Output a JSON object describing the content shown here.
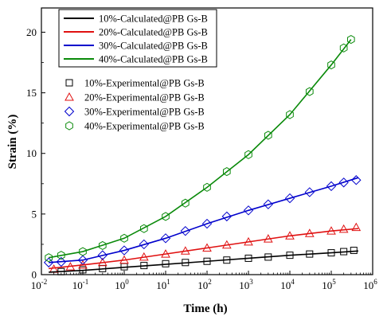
{
  "chart_data": {
    "type": "line",
    "title": "",
    "xlabel": "Time (h)",
    "ylabel": "Strain (%)",
    "x_scale": "log",
    "xlim": [
      0.01,
      1000000
    ],
    "ylim": [
      0,
      22
    ],
    "x_ticks": [
      {
        "base": "10",
        "exp": "-2",
        "value": 0.01
      },
      {
        "base": "10",
        "exp": "-1",
        "value": 0.1
      },
      {
        "base": "10",
        "exp": "0",
        "value": 1
      },
      {
        "base": "10",
        "exp": "1",
        "value": 10
      },
      {
        "base": "10",
        "exp": "2",
        "value": 100
      },
      {
        "base": "10",
        "exp": "3",
        "value": 1000
      },
      {
        "base": "10",
        "exp": "4",
        "value": 10000
      },
      {
        "base": "10",
        "exp": "5",
        "value": 100000
      },
      {
        "base": "10",
        "exp": "6",
        "value": 1000000
      }
    ],
    "y_ticks": [
      "0",
      "5",
      "10",
      "15",
      "20"
    ],
    "grid": false,
    "legend_placement": "top-left",
    "series": [
      {
        "name": "10%-Calculated@PB Gs-B",
        "kind": "line",
        "color": "#000000",
        "x": [
          0.015,
          0.1,
          1,
          10,
          100,
          1000,
          10000,
          100000,
          450000
        ],
        "y": [
          0.2,
          0.35,
          0.6,
          0.85,
          1.1,
          1.35,
          1.6,
          1.8,
          1.95
        ]
      },
      {
        "name": "20%-Calculated@PB Gs-B",
        "kind": "line",
        "color": "#e01010",
        "x": [
          0.015,
          0.1,
          1,
          10,
          100,
          1000,
          10000,
          100000,
          450000
        ],
        "y": [
          0.5,
          0.8,
          1.2,
          1.7,
          2.2,
          2.7,
          3.2,
          3.6,
          3.8
        ]
      },
      {
        "name": "30%-Calculated@PB Gs-B",
        "kind": "line",
        "color": "#0000cc",
        "x": [
          0.015,
          0.1,
          1,
          10,
          100,
          1000,
          10000,
          100000,
          450000
        ],
        "y": [
          1.0,
          1.2,
          2.0,
          3.0,
          4.2,
          5.3,
          6.3,
          7.3,
          8.0
        ]
      },
      {
        "name": "40%-Calculated@PB Gs-B",
        "kind": "line",
        "color": "#0a8a0a",
        "x": [
          0.015,
          0.1,
          1,
          10,
          100,
          1000,
          10000,
          100000,
          300000
        ],
        "y": [
          1.4,
          1.9,
          3.0,
          4.8,
          7.2,
          9.9,
          13.2,
          17.3,
          19.4
        ]
      },
      {
        "name": "10%-Experimental@PB Gs-B",
        "kind": "marker",
        "marker": "square",
        "color": "#000000",
        "x": [
          0.03,
          0.1,
          0.3,
          1,
          3,
          10,
          30,
          100,
          300,
          1000,
          3000,
          10000,
          30000,
          100000,
          200000,
          350000
        ],
        "y": [
          0.25,
          0.4,
          0.5,
          0.65,
          0.75,
          0.9,
          1.0,
          1.1,
          1.2,
          1.35,
          1.45,
          1.6,
          1.7,
          1.8,
          1.9,
          2.0
        ]
      },
      {
        "name": "20%-Experimental@PB Gs-B",
        "kind": "marker",
        "marker": "triangle",
        "color": "#e01010",
        "x": [
          0.02,
          0.05,
          0.1,
          0.3,
          1,
          3,
          10,
          30,
          100,
          300,
          1000,
          3000,
          10000,
          30000,
          100000,
          200000,
          400000
        ],
        "y": [
          0.45,
          0.65,
          0.8,
          1.0,
          1.2,
          1.45,
          1.7,
          1.95,
          2.2,
          2.45,
          2.7,
          2.95,
          3.2,
          3.4,
          3.6,
          3.75,
          3.9
        ]
      },
      {
        "name": "30%-Experimental@PB Gs-B",
        "kind": "marker",
        "marker": "diamond",
        "color": "#0000cc",
        "x": [
          0.015,
          0.03,
          0.1,
          0.3,
          1,
          3,
          10,
          30,
          100,
          300,
          1000,
          3000,
          10000,
          30000,
          100000,
          200000,
          400000
        ],
        "y": [
          1.0,
          1.05,
          1.2,
          1.6,
          2.0,
          2.5,
          3.0,
          3.6,
          4.2,
          4.8,
          5.3,
          5.8,
          6.3,
          6.8,
          7.3,
          7.6,
          7.8
        ]
      },
      {
        "name": "40%-Experimental@PB Gs-B",
        "kind": "marker",
        "marker": "hexagon",
        "color": "#0a8a0a",
        "x": [
          0.015,
          0.03,
          0.1,
          0.3,
          1,
          3,
          10,
          30,
          100,
          300,
          1000,
          3000,
          10000,
          30000,
          100000,
          200000,
          300000
        ],
        "y": [
          1.4,
          1.6,
          1.9,
          2.4,
          3.0,
          3.8,
          4.8,
          5.9,
          7.2,
          8.5,
          9.9,
          11.5,
          13.2,
          15.1,
          17.3,
          18.7,
          19.4
        ]
      }
    ]
  }
}
